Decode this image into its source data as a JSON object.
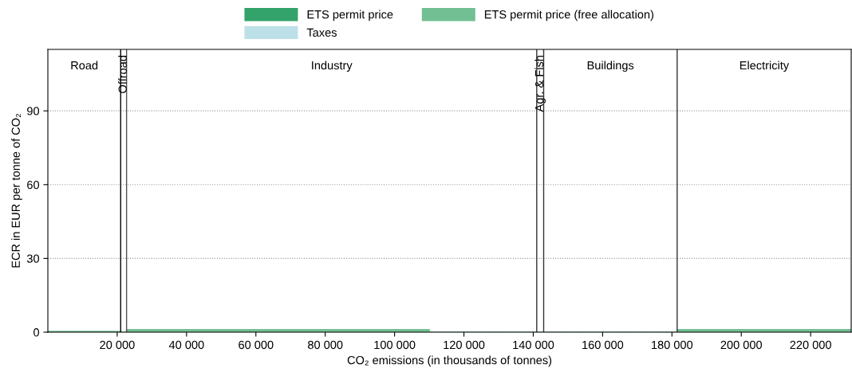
{
  "chart_data": {
    "type": "area",
    "xlabel": "CO₂ emissions (in thousands of tonnes)",
    "ylabel": "ECR in EUR per tonne of CO₂",
    "x": [
      0,
      21000,
      21000,
      22700,
      22700,
      110000,
      110000,
      181500,
      181500,
      231700
    ],
    "series": [
      {
        "name": "ETS permit price",
        "color": "#33a36b",
        "values": [
          null,
          null,
          null,
          null,
          null,
          null,
          null,
          null,
          null,
          null
        ]
      },
      {
        "name": "ETS permit price (free allocation)",
        "color": "#72bf93",
        "values": [
          0.3,
          0.3,
          0,
          0,
          1,
          1,
          0,
          0,
          1,
          1
        ]
      },
      {
        "name": "Taxes",
        "color": "#bde0e8",
        "values": [
          null,
          null,
          null,
          null,
          null,
          null,
          null,
          null,
          null,
          null
        ]
      }
    ],
    "xlim": [
      0,
      231700
    ],
    "ylim": [
      0,
      115
    ],
    "xticks": [
      {
        "value": 20000,
        "label": "20 000"
      },
      {
        "value": 40000,
        "label": "40 000"
      },
      {
        "value": 60000,
        "label": "60 000"
      },
      {
        "value": 80000,
        "label": "80 000"
      },
      {
        "value": 100000,
        "label": "100 000"
      },
      {
        "value": 120000,
        "label": "120 000"
      },
      {
        "value": 140000,
        "label": "140 000"
      },
      {
        "value": 160000,
        "label": "160 000"
      },
      {
        "value": 180000,
        "label": "180 000"
      },
      {
        "value": 200000,
        "label": "200 000"
      },
      {
        "value": 220000,
        "label": "220 000"
      }
    ],
    "yticks": [
      0,
      30,
      60,
      90
    ],
    "grid": "y",
    "legend": "top",
    "ref_lines": [
      {
        "axis": "x",
        "value": 21000,
        "color": "#000000"
      },
      {
        "axis": "x",
        "value": 22700,
        "color": "#555555"
      },
      {
        "axis": "x",
        "value": 141000,
        "color": "#333333"
      },
      {
        "axis": "x",
        "value": 143000,
        "color": "#333333"
      },
      {
        "axis": "x",
        "value": 181500,
        "color": "#333333"
      }
    ],
    "annotations": [
      "Road",
      "Offroad",
      "Industry",
      "Agr. & Fish",
      "Buildings",
      "Electricity"
    ]
  }
}
